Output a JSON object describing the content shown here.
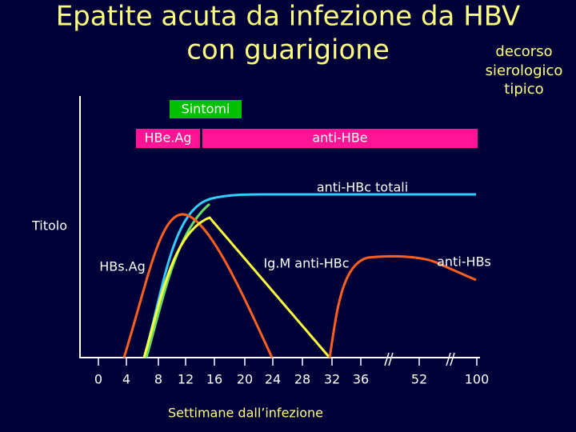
{
  "header": {
    "title_lines": [
      "Epatite acuta da infezione da HBV",
      "con guarigione"
    ],
    "note_lines": [
      "decorso",
      "sierologico",
      "tipico"
    ]
  },
  "bands": {
    "symptoms": "Sintomi",
    "hbeag": "HBe.Ag",
    "anti_hbe": "anti-HBe"
  },
  "labels": {
    "anti_hbc_total": "anti-HBc totali",
    "y_axis": "Titolo",
    "hbsag": "HBs.Ag",
    "igm_anti_hbc": "Ig.M anti-HBc",
    "anti_hbs": "anti-HBs"
  },
  "x_axis": {
    "ticks": [
      "0",
      "4",
      "8",
      "12",
      "16",
      "20",
      "24",
      "28",
      "32",
      "36",
      "52",
      "100"
    ],
    "title": "Settimane dall’infezione"
  }
}
